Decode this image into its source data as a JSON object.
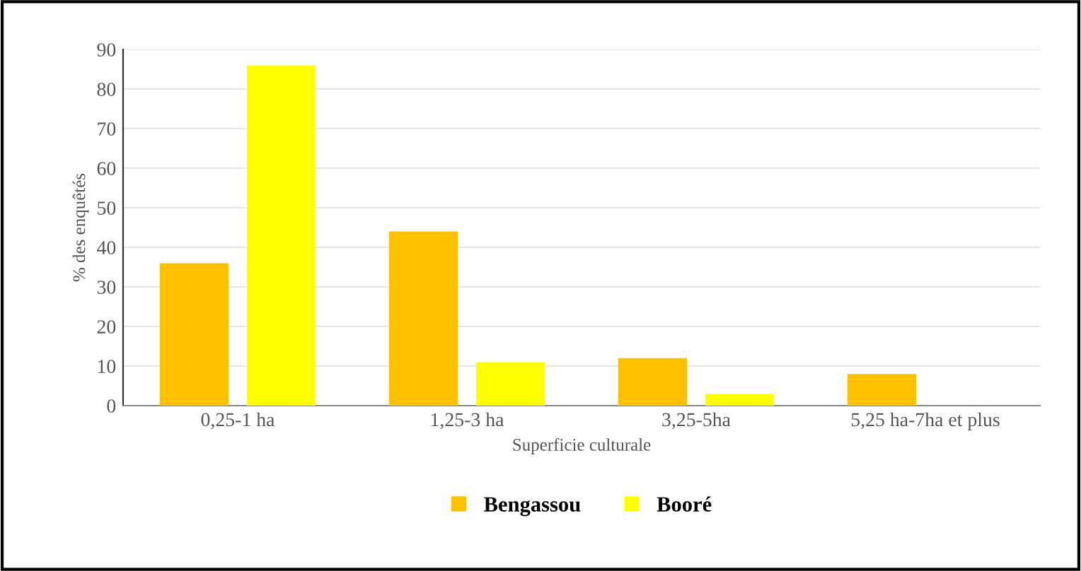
{
  "chart_data": {
    "type": "bar",
    "xlabel": "Superficie culturale",
    "ylabel": "% des enquêtés",
    "categories": [
      "0,25-1 ha",
      "1,25-3 ha",
      "3,25-5ha",
      "5,25 ha-7ha et plus"
    ],
    "series": [
      {
        "name": "Bengassou",
        "color": "#ffc000",
        "values": [
          36,
          44,
          12,
          8
        ]
      },
      {
        "name": "Booré",
        "color": "#ffff00",
        "values": [
          86,
          11,
          3,
          0
        ]
      }
    ],
    "ylim": [
      0,
      90
    ],
    "yticks": [
      0,
      10,
      20,
      30,
      40,
      50,
      60,
      70,
      80,
      90
    ],
    "grid": "y",
    "legend": "bottom"
  }
}
